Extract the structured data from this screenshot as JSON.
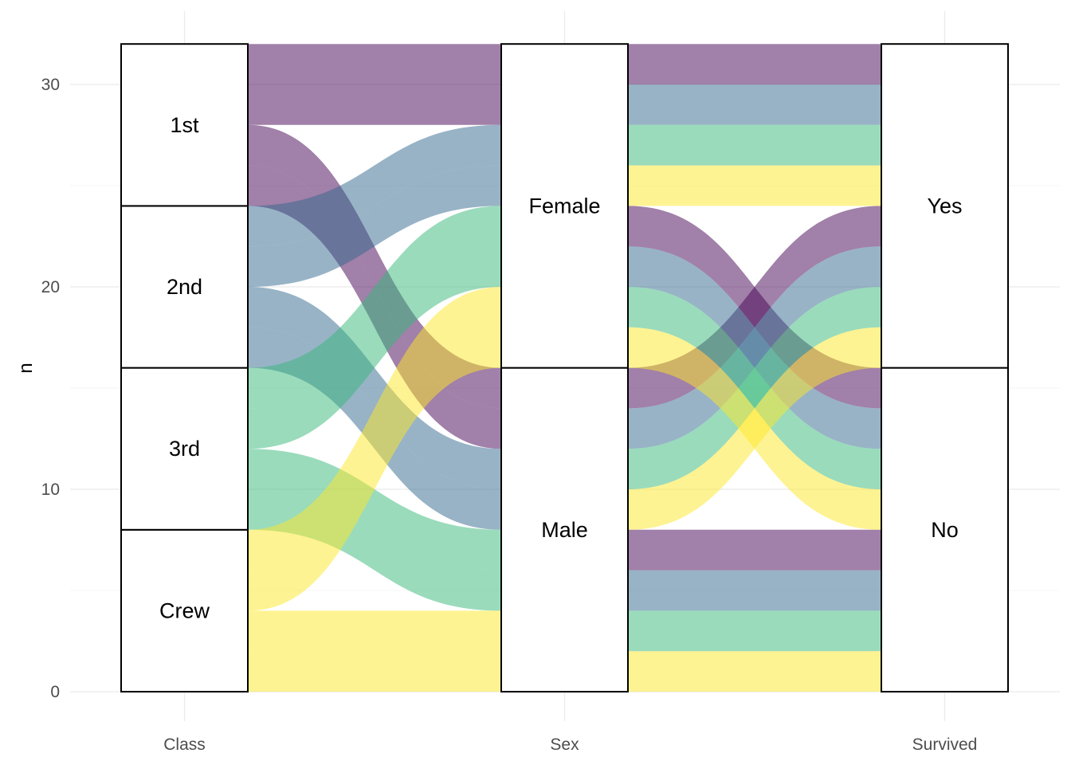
{
  "chart_data": {
    "type": "alluvial",
    "axes": [
      "Class",
      "Sex",
      "Survived"
    ],
    "strata": {
      "Class": [
        "Crew",
        "3rd",
        "2nd",
        "1st"
      ],
      "Sex": [
        "Male",
        "Female"
      ],
      "Survived": [
        "No",
        "Yes"
      ]
    },
    "flows": [
      {
        "Class": "1st",
        "Sex": "Female",
        "Survived": "Yes",
        "n": 2
      },
      {
        "Class": "1st",
        "Sex": "Female",
        "Survived": "No",
        "n": 2
      },
      {
        "Class": "1st",
        "Sex": "Male",
        "Survived": "Yes",
        "n": 2
      },
      {
        "Class": "1st",
        "Sex": "Male",
        "Survived": "No",
        "n": 2
      },
      {
        "Class": "2nd",
        "Sex": "Female",
        "Survived": "Yes",
        "n": 2
      },
      {
        "Class": "2nd",
        "Sex": "Female",
        "Survived": "No",
        "n": 2
      },
      {
        "Class": "2nd",
        "Sex": "Male",
        "Survived": "Yes",
        "n": 2
      },
      {
        "Class": "2nd",
        "Sex": "Male",
        "Survived": "No",
        "n": 2
      },
      {
        "Class": "3rd",
        "Sex": "Female",
        "Survived": "Yes",
        "n": 2
      },
      {
        "Class": "3rd",
        "Sex": "Female",
        "Survived": "No",
        "n": 2
      },
      {
        "Class": "3rd",
        "Sex": "Male",
        "Survived": "Yes",
        "n": 2
      },
      {
        "Class": "3rd",
        "Sex": "Male",
        "Survived": "No",
        "n": 2
      },
      {
        "Class": "Crew",
        "Sex": "Female",
        "Survived": "Yes",
        "n": 2
      },
      {
        "Class": "Crew",
        "Sex": "Female",
        "Survived": "No",
        "n": 2
      },
      {
        "Class": "Crew",
        "Sex": "Male",
        "Survived": "Yes",
        "n": 2
      },
      {
        "Class": "Crew",
        "Sex": "Male",
        "Survived": "No",
        "n": 2
      }
    ],
    "fill_by": "Class",
    "fill_colors": {
      "1st": "#440154",
      "2nd": "#31688e",
      "3rd": "#35b779",
      "Crew": "#fde725"
    },
    "ylabel": "n",
    "ylim": [
      0,
      32
    ],
    "yticks": [
      0,
      10,
      20,
      30
    ],
    "grid": true,
    "legend": "none"
  }
}
